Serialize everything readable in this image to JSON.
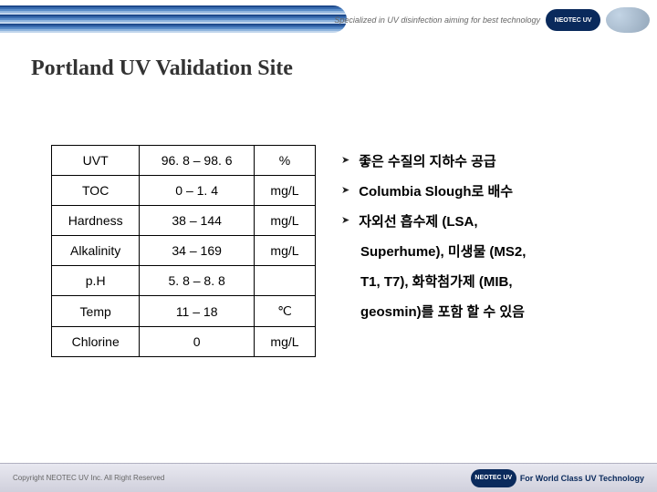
{
  "header": {
    "tagline": "Specialized in UV disinfection aiming for best technology",
    "logo_text": "NEOTEC UV"
  },
  "title": "Portland UV Validation Site",
  "table": {
    "rows": [
      {
        "param": "UVT",
        "value": "96. 8 – 98. 6",
        "unit": "%"
      },
      {
        "param": "TOC",
        "value": "0 – 1. 4",
        "unit": "mg/L"
      },
      {
        "param": "Hardness",
        "value": "38 – 144",
        "unit": "mg/L"
      },
      {
        "param": "Alkalinity",
        "value": "34 – 169",
        "unit": "mg/L"
      },
      {
        "param": "p.H",
        "value": "5. 8 – 8. 8",
        "unit": ""
      },
      {
        "param": "Temp",
        "value": "11 – 18",
        "unit": "℃"
      },
      {
        "param": "Chlorine",
        "value": "0",
        "unit": "mg/L"
      }
    ]
  },
  "bullets": {
    "b1": "좋은 수질의 지하수 공급",
    "b2": "Columbia Slough로 배수",
    "b3": "자외선 흡수제 (LSA,",
    "c1": "Superhume), 미생물 (MS2,",
    "c2": "T1, T7), 화학첨가제 (MIB,",
    "c3": "geosmin)를 포함 할 수 있음"
  },
  "footer": {
    "copyright": "Copyright NEOTEC UV Inc. All Right Reserved",
    "logo_text": "NEOTEC UV",
    "logo_sub": "For World Class UV Technology"
  }
}
